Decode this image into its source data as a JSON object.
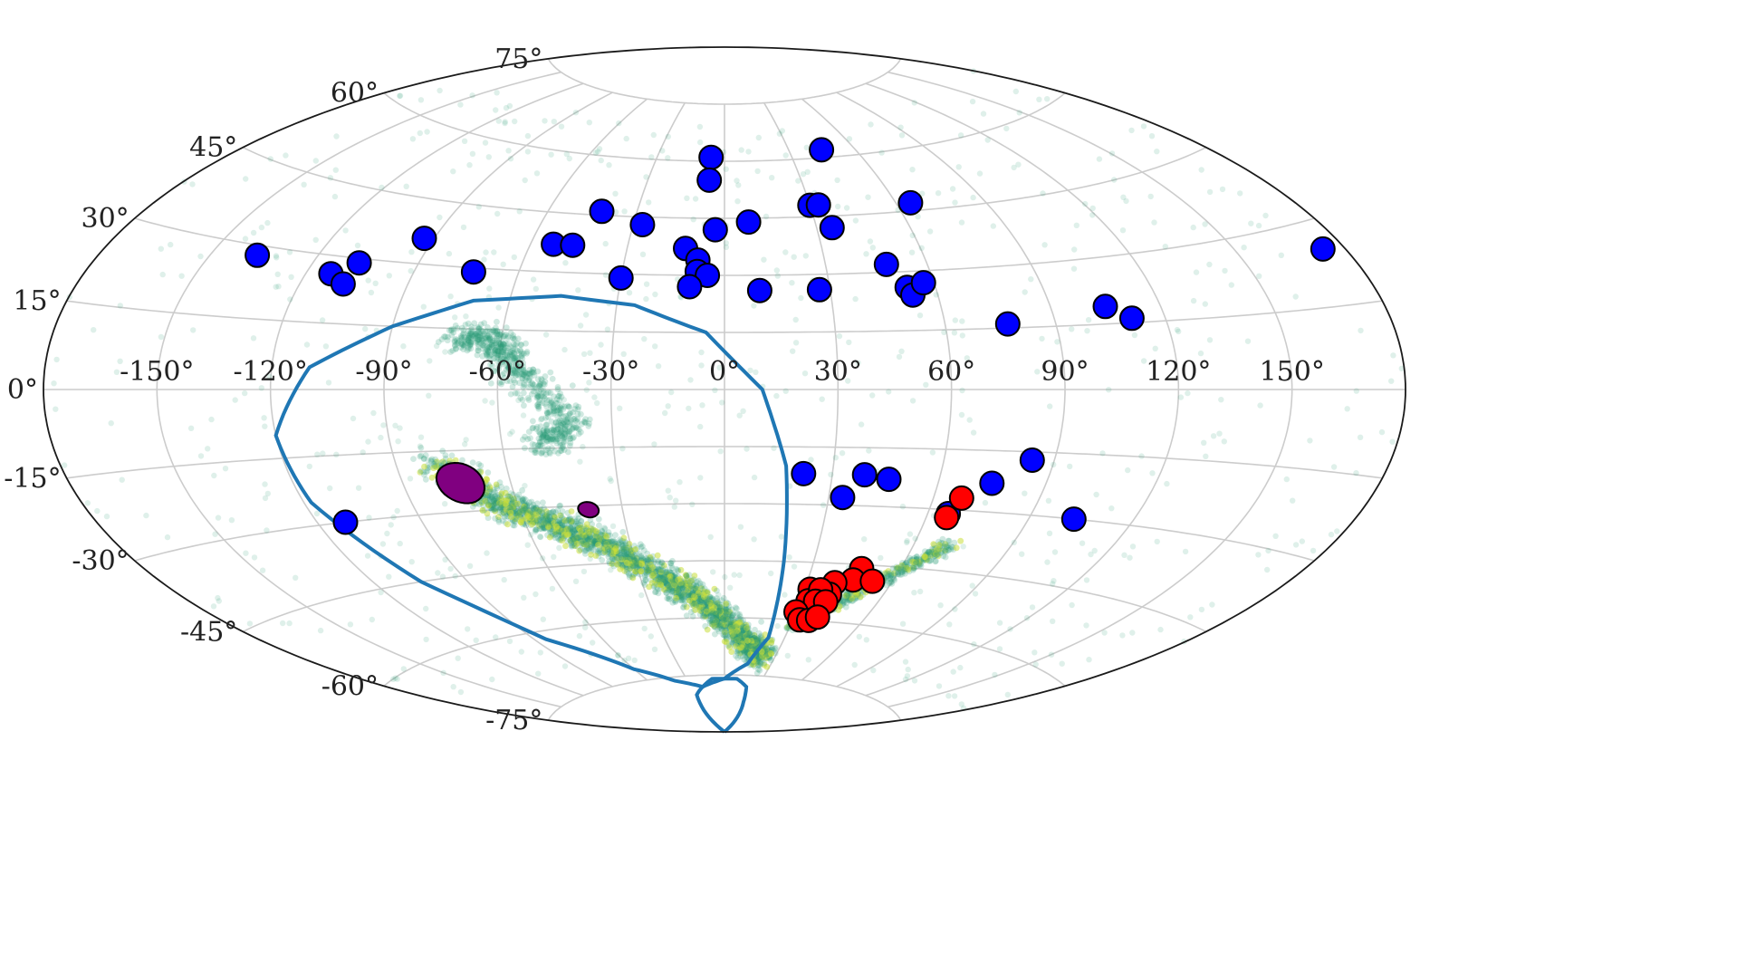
{
  "chart_data": {
    "type": "scatter",
    "projection": "aitoff",
    "title": "",
    "xlabel": "",
    "ylabel": "",
    "xlim": [
      -180,
      180
    ],
    "ylim": [
      -90,
      90
    ],
    "grid": true,
    "lon_ticks": [
      {
        "value": -150,
        "label": "-150°"
      },
      {
        "value": -120,
        "label": "-120°"
      },
      {
        "value": -90,
        "label": "-90°"
      },
      {
        "value": -60,
        "label": "-60°"
      },
      {
        "value": -30,
        "label": "-30°"
      },
      {
        "value": 0,
        "label": "0°"
      },
      {
        "value": 30,
        "label": "30°"
      },
      {
        "value": 60,
        "label": "60°"
      },
      {
        "value": 90,
        "label": "90°"
      },
      {
        "value": 120,
        "label": "120°"
      },
      {
        "value": 150,
        "label": "150°"
      }
    ],
    "lat_ticks": [
      {
        "value": 75,
        "label": "75°"
      },
      {
        "value": 60,
        "label": "60°"
      },
      {
        "value": 45,
        "label": "45°"
      },
      {
        "value": 30,
        "label": "30°"
      },
      {
        "value": 15,
        "label": "15°"
      },
      {
        "value": 0,
        "label": "0°"
      },
      {
        "value": -15,
        "label": "-15°"
      },
      {
        "value": -30,
        "label": "-30°"
      },
      {
        "value": -45,
        "label": "-45°"
      },
      {
        "value": -60,
        "label": "-60°"
      },
      {
        "value": -75,
        "label": "-75°"
      }
    ],
    "colors": {
      "blue_points": "#0000ff",
      "red_points": "#ff0000",
      "purple_regions": "#800080",
      "footprint_line": "#1f77b4",
      "density_low": "#2a9d75",
      "density_high": "#c8df3a"
    },
    "blue_points": [
      [
        -6,
        61
      ],
      [
        -6,
        55
      ],
      [
        45,
        62
      ],
      [
        -42,
        46
      ],
      [
        -27,
        43
      ],
      [
        -3,
        42
      ],
      [
        8,
        44
      ],
      [
        30,
        48
      ],
      [
        33,
        48
      ],
      [
        35,
        42
      ],
      [
        65,
        47
      ],
      [
        -53,
        37
      ],
      [
        -47,
        37
      ],
      [
        -93,
        36
      ],
      [
        -12,
        37
      ],
      [
        -137,
        28
      ],
      [
        -107,
        29
      ],
      [
        -113,
        26
      ],
      [
        -108,
        24
      ],
      [
        -73,
        29
      ],
      [
        -30,
        29
      ],
      [
        -8,
        34
      ],
      [
        -8,
        31
      ],
      [
        -5,
        30
      ],
      [
        -10,
        27
      ],
      [
        10,
        26
      ],
      [
        27,
        26
      ],
      [
        48,
        32
      ],
      [
        52,
        26
      ],
      [
        53,
        24
      ],
      [
        57,
        27
      ],
      [
        77,
        16
      ],
      [
        105,
        19
      ],
      [
        111,
        16
      ],
      [
        174,
        25
      ],
      [
        22,
        -22
      ],
      [
        39,
        -22
      ],
      [
        46,
        -23
      ],
      [
        84,
        -17
      ],
      [
        75,
        -23
      ],
      [
        34,
        -28
      ],
      [
        66,
        -31
      ],
      [
        103,
        -30
      ],
      [
        -112,
        -30
      ]
    ],
    "red_points": [
      [
        68,
        -27
      ],
      [
        66,
        -32
      ],
      [
        47,
        -46
      ],
      [
        46,
        -49
      ],
      [
        53,
        -49
      ],
      [
        40,
        -50
      ],
      [
        40,
        -53
      ],
      [
        32,
        -52
      ],
      [
        33,
        -55
      ],
      [
        36,
        -52
      ],
      [
        36,
        -55
      ],
      [
        40,
        -55
      ],
      [
        30,
        -58
      ],
      [
        33,
        -60
      ],
      [
        37,
        -60
      ],
      [
        40,
        -59
      ]
    ],
    "purple_regions": [
      {
        "center": [
          -74,
          -23
        ],
        "width_deg": 13,
        "height_deg": 10
      },
      {
        "center": [
          -40,
          -31
        ],
        "width_deg": 6,
        "height_deg": 4
      }
    ],
    "density_scatter": {
      "description_hidden": true,
      "main_band": [
        [
          -80,
          -18
        ],
        [
          -65,
          -28
        ],
        [
          -50,
          -35
        ],
        [
          -35,
          -42
        ],
        [
          -20,
          -50
        ],
        [
          -5,
          -58
        ],
        [
          10,
          -66
        ],
        [
          25,
          -70
        ]
      ],
      "eastern_arm": [
        [
          30,
          -62
        ],
        [
          45,
          -55
        ],
        [
          60,
          -46
        ],
        [
          72,
          -38
        ]
      ],
      "northern_streams": [
        [
          -72,
          13
        ],
        [
          -60,
          12
        ],
        [
          -55,
          4
        ],
        [
          -40,
          -8
        ],
        [
          -50,
          -14
        ]
      ]
    },
    "footprint_outline": [
      [
        -46,
        24
      ],
      [
        -25,
        22
      ],
      [
        -5,
        15
      ],
      [
        10,
        0
      ],
      [
        17,
        -20
      ],
      [
        20,
        -45
      ],
      [
        22,
        -65
      ],
      [
        15,
        -72
      ],
      [
        0,
        -76
      ],
      [
        -20,
        -78
      ],
      [
        -40,
        -76
      ],
      [
        -60,
        -72
      ],
      [
        -85,
        -62
      ],
      [
        -105,
        -45
      ],
      [
        -118,
        -25
      ],
      [
        -120,
        -10
      ],
      [
        -110,
        5
      ],
      [
        -90,
        15
      ],
      [
        -70,
        22
      ],
      [
        -46,
        24
      ]
    ],
    "cap_outline": [
      [
        -45,
        -90
      ],
      [
        -30,
        -80
      ],
      [
        -10,
        -76
      ],
      [
        10,
        -76
      ],
      [
        20,
        -78
      ],
      [
        25,
        -82
      ],
      [
        40,
        -90
      ]
    ]
  }
}
